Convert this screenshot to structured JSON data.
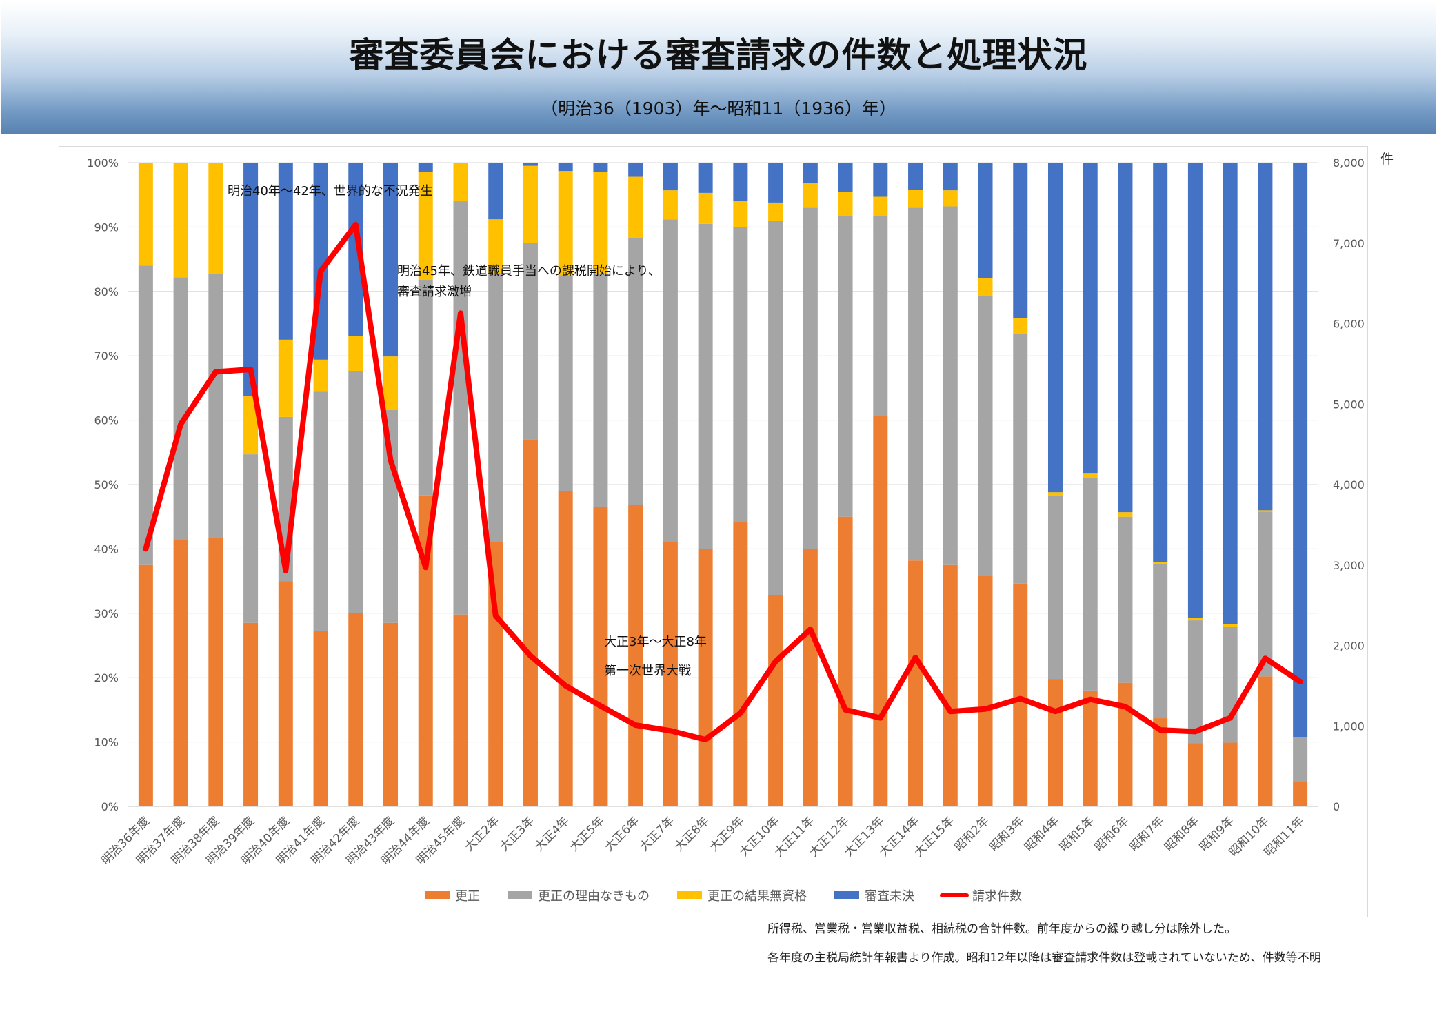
{
  "header": {
    "title": "審査委員会における審査請求の件数と処理状況",
    "subtitle": "（明治36（1903）年～昭和11（1936）年）"
  },
  "notes": {
    "line1": "所得税、営業税・営業収益税、相続税の合計件数。前年度からの繰り越し分は除外した。",
    "line2": "各年度の主税局統計年報書より作成。昭和12年以降は審査請求件数は登載されていないため、件数等不明"
  },
  "colors": {
    "kosei": "#ED7D31",
    "nashi": "#A5A5A5",
    "mushikaku": "#FFC000",
    "mikketsu": "#4472C4",
    "line": "#FF0000"
  },
  "chart_data": {
    "type": "bar",
    "stacked": "percent",
    "categories": [
      "明治36年度",
      "明治37年度",
      "明治38年度",
      "明治39年度",
      "明治40年度",
      "明治41年度",
      "明治42年度",
      "明治43年度",
      "明治44年度",
      "明治45年度",
      "大正2年",
      "大正3年",
      "大正4年",
      "大正5年",
      "大正6年",
      "大正7年",
      "大正8年",
      "大正9年",
      "大正10年",
      "大正11年",
      "大正12年",
      "大正13年",
      "大正14年",
      "大正15年",
      "昭和2年",
      "昭和3年",
      "昭和4年",
      "昭和5年",
      "昭和6年",
      "昭和7年",
      "昭和8年",
      "昭和9年",
      "昭和10年",
      "昭和11年"
    ],
    "series": [
      {
        "name": "更正",
        "type": "bar",
        "color": "#ED7D31",
        "values": [
          37.5,
          41.5,
          41.8,
          28.5,
          35.0,
          27.2,
          30.0,
          28.5,
          48.3,
          29.8,
          41.2,
          57.0,
          49.0,
          46.5,
          46.8,
          41.2,
          40.0,
          44.3,
          32.8,
          40.0,
          45.0,
          60.7,
          38.2,
          37.5,
          35.8,
          34.6,
          19.8,
          18.0,
          19.2,
          13.7,
          9.8,
          9.9,
          20.2,
          3.8
        ]
      },
      {
        "name": "更正の理由なきもの",
        "type": "bar",
        "color": "#A5A5A5",
        "values": [
          46.5,
          40.7,
          40.9,
          26.2,
          25.5,
          37.2,
          37.6,
          33.1,
          33.5,
          64.2,
          41.5,
          30.5,
          33.5,
          36.2,
          41.5,
          50.0,
          50.5,
          45.7,
          58.2,
          53.0,
          46.7,
          31.0,
          54.8,
          55.7,
          43.5,
          38.8,
          28.4,
          33.0,
          25.8,
          23.9,
          19.1,
          18.0,
          25.6,
          7.0
        ]
      },
      {
        "name": "更正の結果無資格",
        "type": "bar",
        "color": "#FFC000",
        "values": [
          16.0,
          17.8,
          17.2,
          9.0,
          12.0,
          5.0,
          5.5,
          8.3,
          16.7,
          6.0,
          8.5,
          12.0,
          16.2,
          15.8,
          9.5,
          4.5,
          4.8,
          4.0,
          2.8,
          3.8,
          3.8,
          3.0,
          2.8,
          2.5,
          2.8,
          2.5,
          0.6,
          0.8,
          0.7,
          0.4,
          0.4,
          0.4,
          0.2,
          0.0
        ]
      },
      {
        "name": "審査未決",
        "type": "bar",
        "color": "#4472C4",
        "values": [
          0.0,
          0.0,
          0.1,
          36.3,
          27.5,
          30.6,
          26.9,
          30.1,
          1.5,
          0.0,
          8.8,
          0.5,
          1.3,
          1.5,
          2.2,
          4.3,
          4.7,
          6.0,
          6.2,
          3.2,
          4.5,
          5.3,
          4.2,
          4.3,
          17.9,
          24.1,
          51.2,
          48.2,
          54.3,
          62.0,
          70.7,
          71.7,
          54.0,
          89.2
        ]
      },
      {
        "name": "請求件数",
        "type": "line",
        "axis": "right",
        "color": "#FF0000",
        "values": [
          3200,
          4750,
          5400,
          5430,
          2930,
          6650,
          7230,
          4300,
          2970,
          6130,
          2370,
          1870,
          1500,
          1250,
          1010,
          940,
          830,
          1160,
          1800,
          2200,
          1200,
          1100,
          1850,
          1180,
          1210,
          1340,
          1180,
          1330,
          1240,
          950,
          930,
          1100,
          1840,
          1550
        ]
      }
    ],
    "y_left": {
      "min": 0,
      "max": 100,
      "ticks": [
        "0%",
        "10%",
        "20%",
        "30%",
        "40%",
        "50%",
        "60%",
        "70%",
        "80%",
        "90%",
        "100%"
      ]
    },
    "y_right": {
      "min": 0,
      "max": 8000,
      "unit": "件",
      "ticks": [
        "0",
        "1,000",
        "2,000",
        "3,000",
        "4,000",
        "5,000",
        "6,000",
        "7,000",
        "8,000"
      ]
    },
    "grid": true,
    "legend_position": "bottom",
    "annotations": [
      {
        "lines": [
          "明治40年～42年、世界的な不況発生"
        ]
      },
      {
        "lines": [
          "明治45年、鉄道職員手当への課税開始により、",
          "審査請求激増"
        ]
      },
      {
        "lines": [
          "大正3年～大正8年",
          "第一次世界大戦"
        ]
      }
    ]
  }
}
